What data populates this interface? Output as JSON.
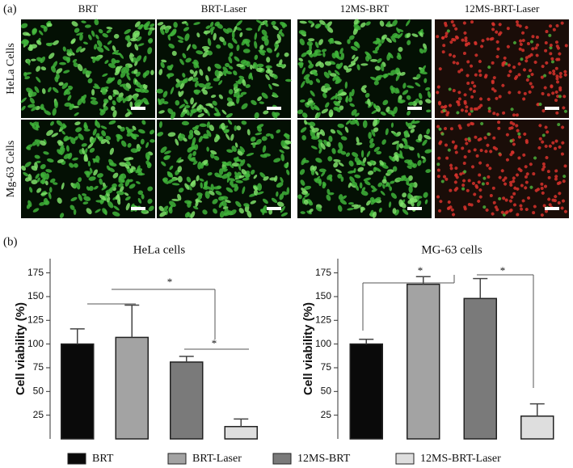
{
  "panel_labels": [
    "(a)",
    "(b)"
  ],
  "images": {
    "columns": [
      "BRT",
      "BRT-Laser",
      "12MS-BRT",
      "12MS-BRT-Laser"
    ],
    "rows": [
      "HeLa Cells",
      "Mg-63 Cells"
    ]
  },
  "chart_data": [
    {
      "type": "bar",
      "title": "HeLa cells",
      "y_label": "Cell viability (%)",
      "categories": [
        "BRT",
        "BRT-Laser",
        "12MS-BRT",
        "12MS-BRT-Laser"
      ],
      "values": [
        100,
        107,
        81,
        13
      ],
      "errors": [
        16,
        34,
        6,
        8
      ],
      "colors": [
        "#0a0a0a",
        "#a3a3a3",
        "#7a7a7a",
        "#dedede"
      ],
      "ylim": [
        0,
        190
      ],
      "yticks": [
        25,
        50,
        75,
        100,
        125,
        150,
        175
      ],
      "annotations": [
        "*",
        "*"
      ]
    },
    {
      "type": "bar",
      "title": "MG-63 cells",
      "y_label": "Cell viability (%)",
      "values": [
        100,
        163,
        148,
        24
      ],
      "errors": [
        5,
        8,
        21,
        13
      ],
      "colors": [
        "#0a0a0a",
        "#a3a3a3",
        "#7a7a7a",
        "#dedede"
      ],
      "ylim": [
        0,
        190
      ],
      "yticks": [
        25,
        50,
        75,
        100,
        125,
        150,
        175
      ],
      "annotations": [
        "*",
        "*"
      ]
    }
  ]
}
